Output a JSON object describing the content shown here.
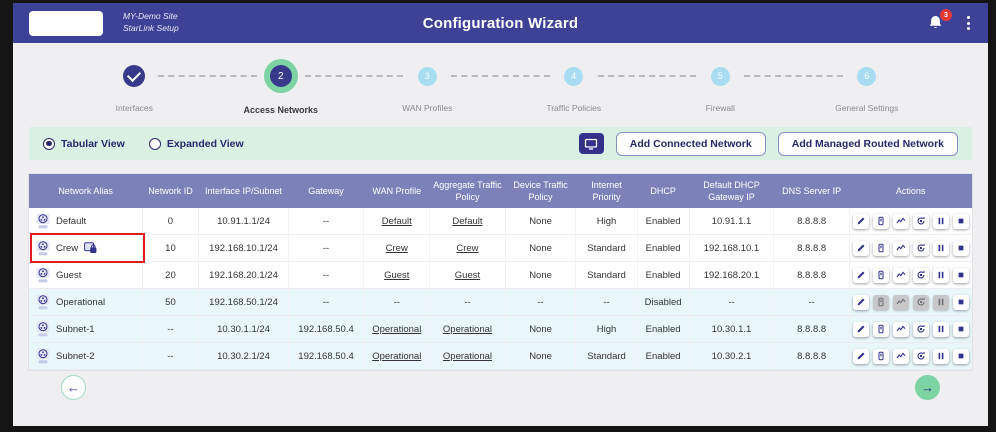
{
  "header": {
    "site_line1": "MY-Demo Site",
    "site_line2": "StarLink Setup",
    "title": "Configuration Wizard",
    "notification_count": "3"
  },
  "stepper": {
    "steps": [
      {
        "number": "1",
        "label": "Interfaces",
        "state": "done"
      },
      {
        "number": "2",
        "label": "Access Networks",
        "state": "active"
      },
      {
        "number": "3",
        "label": "WAN Profiles",
        "state": "future"
      },
      {
        "number": "4",
        "label": "Traffic Policies",
        "state": "future"
      },
      {
        "number": "5",
        "label": "Firewall",
        "state": "future"
      },
      {
        "number": "6",
        "label": "General Settings",
        "state": "future"
      }
    ]
  },
  "toolbar": {
    "view_options": [
      {
        "label": "Tabular View",
        "selected": true
      },
      {
        "label": "Expanded View",
        "selected": false
      }
    ],
    "icon_button": "display-icon",
    "add_connected_label": "Add Connected Network",
    "add_managed_label": "Add Managed Routed Network"
  },
  "table": {
    "columns": [
      "Network Alias",
      "Network ID",
      "Interface IP/Subnet",
      "Gateway",
      "WAN Profile",
      "Aggregate Traffic Policy",
      "Device Traffic Policy",
      "Internet Priority",
      "DHCP",
      "Default DHCP Gateway IP",
      "DNS Server IP",
      "Actions"
    ],
    "action_names": [
      "edit",
      "device",
      "statistics",
      "refresh",
      "pause",
      "stop"
    ],
    "rows": [
      {
        "alias": "Default",
        "network_id": "0",
        "interface_ip_subnet": "10.91.1.1/24",
        "gateway": "--",
        "wan_profile": "Default",
        "aggregate_traffic_policy": "Default",
        "device_traffic_policy": "None",
        "internet_priority": "High",
        "dhcp": "Enabled",
        "default_dhcp_gateway_ip": "10.91.1.1",
        "dns_server_ip": "8.8.8.8",
        "tinted": false,
        "locked": false,
        "highlighted": false,
        "disabled_actions": []
      },
      {
        "alias": "Crew",
        "network_id": "10",
        "interface_ip_subnet": "192.168.10.1/24",
        "gateway": "--",
        "wan_profile": "Crew",
        "aggregate_traffic_policy": "Crew",
        "device_traffic_policy": "None",
        "internet_priority": "Standard",
        "dhcp": "Enabled",
        "default_dhcp_gateway_ip": "192.168.10.1",
        "dns_server_ip": "8.8.8.8",
        "tinted": false,
        "locked": true,
        "highlighted": true,
        "disabled_actions": []
      },
      {
        "alias": "Guest",
        "network_id": "20",
        "interface_ip_subnet": "192.168.20.1/24",
        "gateway": "--",
        "wan_profile": "Guest",
        "aggregate_traffic_policy": "Guest",
        "device_traffic_policy": "None",
        "internet_priority": "Standard",
        "dhcp": "Enabled",
        "default_dhcp_gateway_ip": "192.168.20.1",
        "dns_server_ip": "8.8.8.8",
        "tinted": false,
        "locked": false,
        "highlighted": false,
        "disabled_actions": []
      },
      {
        "alias": "Operational",
        "network_id": "50",
        "interface_ip_subnet": "192.168.50.1/24",
        "gateway": "--",
        "wan_profile": "--",
        "aggregate_traffic_policy": "--",
        "device_traffic_policy": "--",
        "internet_priority": "--",
        "dhcp": "Disabled",
        "default_dhcp_gateway_ip": "--",
        "dns_server_ip": "--",
        "tinted": true,
        "locked": false,
        "highlighted": false,
        "disabled_actions": [
          1,
          2,
          3,
          4
        ]
      },
      {
        "alias": "Subnet-1",
        "network_id": "--",
        "interface_ip_subnet": "10.30.1.1/24",
        "gateway": "192.168.50.4",
        "wan_profile": "Operational",
        "aggregate_traffic_policy": "Operational",
        "device_traffic_policy": "None",
        "internet_priority": "High",
        "dhcp": "Enabled",
        "default_dhcp_gateway_ip": "10.30.1.1",
        "dns_server_ip": "8.8.8.8",
        "tinted": true,
        "locked": false,
        "highlighted": false,
        "disabled_actions": []
      },
      {
        "alias": "Subnet-2",
        "network_id": "--",
        "interface_ip_subnet": "10.30.2.1/24",
        "gateway": "192.168.50.4",
        "wan_profile": "Operational",
        "aggregate_traffic_policy": "Operational",
        "device_traffic_policy": "None",
        "internet_priority": "Standard",
        "dhcp": "Enabled",
        "default_dhcp_gateway_ip": "10.30.2.1",
        "dns_server_ip": "8.8.8.8",
        "tinted": true,
        "locked": false,
        "highlighted": false,
        "disabled_actions": []
      }
    ]
  },
  "colors": {
    "header_bg": "#3e4296",
    "table_header_bg": "#7c81b9",
    "toolbar_bg": "#d9f0e3",
    "accent_dark": "#32328c",
    "step_active_ring": "#7ed3a4",
    "step_future": "#a7dcf1",
    "row_tint": "#e9f7fa",
    "badge_red": "#e53935",
    "highlight_red": "#e01b1b"
  }
}
